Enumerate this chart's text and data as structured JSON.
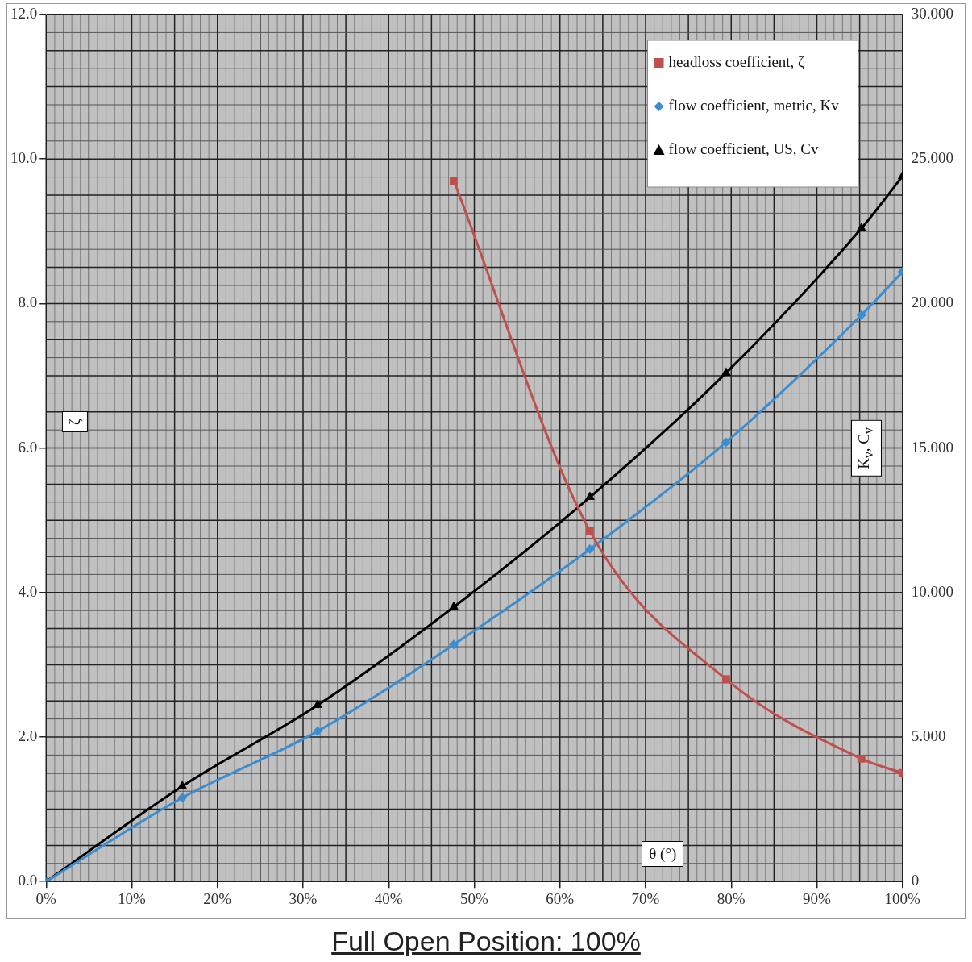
{
  "chart_data": {
    "type": "line",
    "xlabel": "θ (°)",
    "ylabel": "ζ",
    "y2label": "K$_{v}$, C$_{v}$",
    "x": [
      0,
      15.9,
      31.7,
      47.6,
      63.5,
      79.4,
      95.2,
      100
    ],
    "series": [
      {
        "name": "headloss coefficient, ζ",
        "color": "#c0504d",
        "marker": "square",
        "x": [
          47.6,
          63.5,
          79.4,
          95.2,
          100
        ],
        "values": [
          9.7,
          4.85,
          2.8,
          1.7,
          1.5
        ]
      },
      {
        "name": "flow coefficient, metric, Kv",
        "color": "#3c8dd0",
        "marker": "diamond",
        "axis": "y2",
        "values": [
          0,
          2.9,
          5.2,
          8.2,
          11.5,
          15.2,
          19.6,
          21.1
        ]
      },
      {
        "name": "flow coefficient, US, Cv",
        "color": "#000000",
        "marker": "triangle",
        "axis": "y2",
        "values": [
          0,
          3.3,
          6.1,
          9.5,
          13.3,
          17.6,
          22.6,
          24.4
        ]
      }
    ],
    "xlim": [
      0,
      100
    ],
    "xticks": [
      {
        "value": 0,
        "label": "0%"
      },
      {
        "value": 10,
        "label": "10%"
      },
      {
        "value": 20,
        "label": "20%"
      },
      {
        "value": 30,
        "label": "30%"
      },
      {
        "value": 40,
        "label": "40%"
      },
      {
        "value": 50,
        "label": "50%"
      },
      {
        "value": 60,
        "label": "60%"
      },
      {
        "value": 70,
        "label": "70%"
      },
      {
        "value": 80,
        "label": "80%"
      },
      {
        "value": 90,
        "label": "90%"
      },
      {
        "value": 100,
        "label": "100%"
      }
    ],
    "ylim": [
      0,
      12
    ],
    "yticks": [
      {
        "value": 0,
        "label": "0.0"
      },
      {
        "value": 2,
        "label": "2.0"
      },
      {
        "value": 4,
        "label": "4.0"
      },
      {
        "value": 6,
        "label": "6.0"
      },
      {
        "value": 8,
        "label": "8.0"
      },
      {
        "value": 10,
        "label": "10.0"
      },
      {
        "value": 12,
        "label": "12.0"
      }
    ],
    "y2lim": [
      0,
      30
    ],
    "y2ticks": [
      0,
      {
        "value": 5,
        "label": "5.000"
      },
      {
        "value": 10,
        "label": "10.000"
      },
      {
        "value": 15,
        "label": "15.000"
      },
      {
        "value": 20,
        "label": "20.000"
      },
      {
        "value": 25,
        "label": "25.000"
      },
      {
        "value": 30,
        "label": "30.000"
      }
    ],
    "grid": true,
    "legend": "top right",
    "line_style": "solid",
    "annotations": [
      "Full Open Position: 100%"
    ]
  }
}
